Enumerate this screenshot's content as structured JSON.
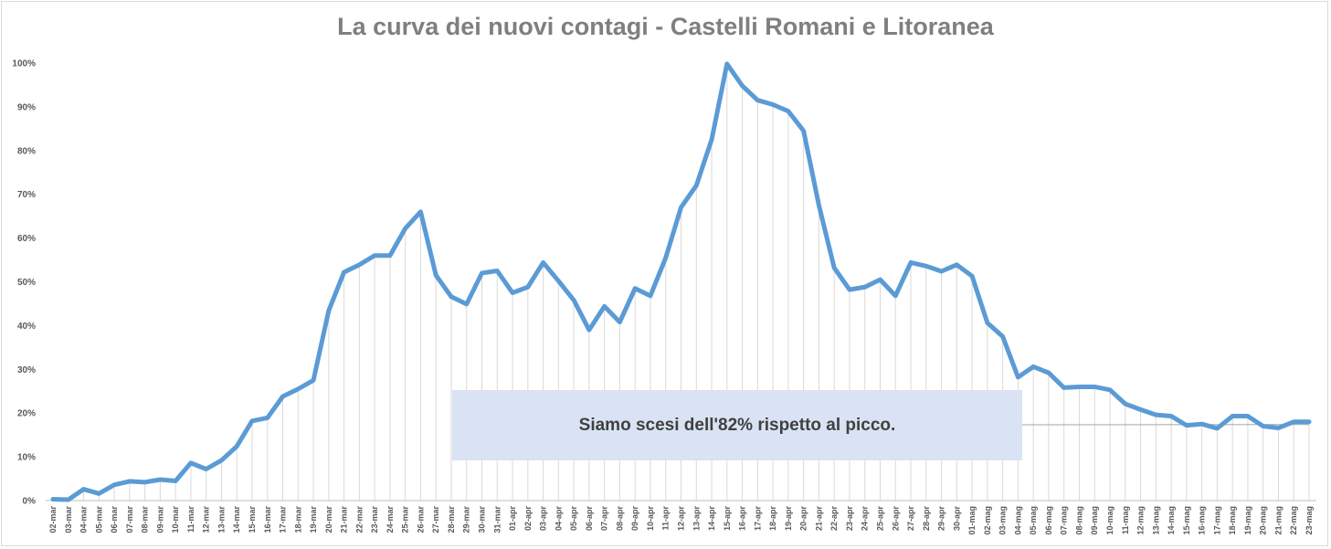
{
  "chart_data": {
    "type": "line",
    "title": "La curva dei nuovi contagi - Castelli Romani e Litoranea",
    "xlabel": "",
    "ylabel": "",
    "ylim": [
      0,
      100
    ],
    "y_ticks": [
      "0%",
      "10%",
      "20%",
      "30%",
      "40%",
      "50%",
      "60%",
      "70%",
      "80%",
      "90%",
      "100%"
    ],
    "grid": "vertical drop lines",
    "legend": "none",
    "color": "#5b9bd5",
    "annotation": "Siamo scesi dell'82% rispetto al picco.",
    "categories": [
      "02-mar",
      "03-mar",
      "04-mar",
      "05-mar",
      "06-mar",
      "07-mar",
      "08-mar",
      "09-mar",
      "10-mar",
      "11-mar",
      "12-mar",
      "13-mar",
      "14-mar",
      "15-mar",
      "16-mar",
      "17-mar",
      "18-mar",
      "19-mar",
      "20-mar",
      "21-mar",
      "22-mar",
      "23-mar",
      "24-mar",
      "25-mar",
      "26-mar",
      "27-mar",
      "28-mar",
      "29-mar",
      "30-mar",
      "31-mar",
      "01-apr",
      "02-apr",
      "03-apr",
      "04-apr",
      "05-apr",
      "06-apr",
      "07-apr",
      "08-apr",
      "09-apr",
      "10-apr",
      "11-apr",
      "12-apr",
      "13-apr",
      "14-apr",
      "15-apr",
      "16-apr",
      "17-apr",
      "18-apr",
      "19-apr",
      "20-apr",
      "21-apr",
      "22-apr",
      "23-apr",
      "24-apr",
      "25-apr",
      "26-apr",
      "27-apr",
      "28-apr",
      "29-apr",
      "30-apr",
      "01-mag",
      "02-mag",
      "03-mag",
      "04-mag",
      "05-mag",
      "06-mag",
      "07-mag",
      "08-mag",
      "09-mag",
      "10-mag",
      "11-mag",
      "12-mag",
      "13-mag",
      "14-mag",
      "15-mag",
      "16-mag",
      "17-mag",
      "18-mag",
      "19-mag",
      "20-mag",
      "21-mag",
      "22-mag",
      "23-mag"
    ],
    "values": [
      0.3,
      0.2,
      2.6,
      1.6,
      3.6,
      4.4,
      4.2,
      4.8,
      4.5,
      8.6,
      7.2,
      9.2,
      12.4,
      18.2,
      18.9,
      23.8,
      25.5,
      27.5,
      43.4,
      52.2,
      53.9,
      56.0,
      56.0,
      62.2,
      66.0,
      51.5,
      46.6,
      44.9,
      52.0,
      52.5,
      47.5,
      48.8,
      54.4,
      50.2,
      45.8,
      39.0,
      44.4,
      40.8,
      48.5,
      46.8,
      55.5,
      67.0,
      72.0,
      82.5,
      99.8,
      94.8,
      91.5,
      90.5,
      89.0,
      84.5,
      67.5,
      53.2,
      48.2,
      48.8,
      50.5,
      46.8,
      54.4,
      53.6,
      52.4,
      53.9,
      51.3,
      40.6,
      37.5,
      28.2,
      30.6,
      29.2,
      25.8,
      26.0,
      26.0,
      25.3,
      22.1,
      20.8,
      19.6,
      19.3,
      17.2,
      17.5,
      16.5,
      19.3,
      19.3,
      17.0,
      16.6,
      18.0,
      18.0
    ]
  }
}
